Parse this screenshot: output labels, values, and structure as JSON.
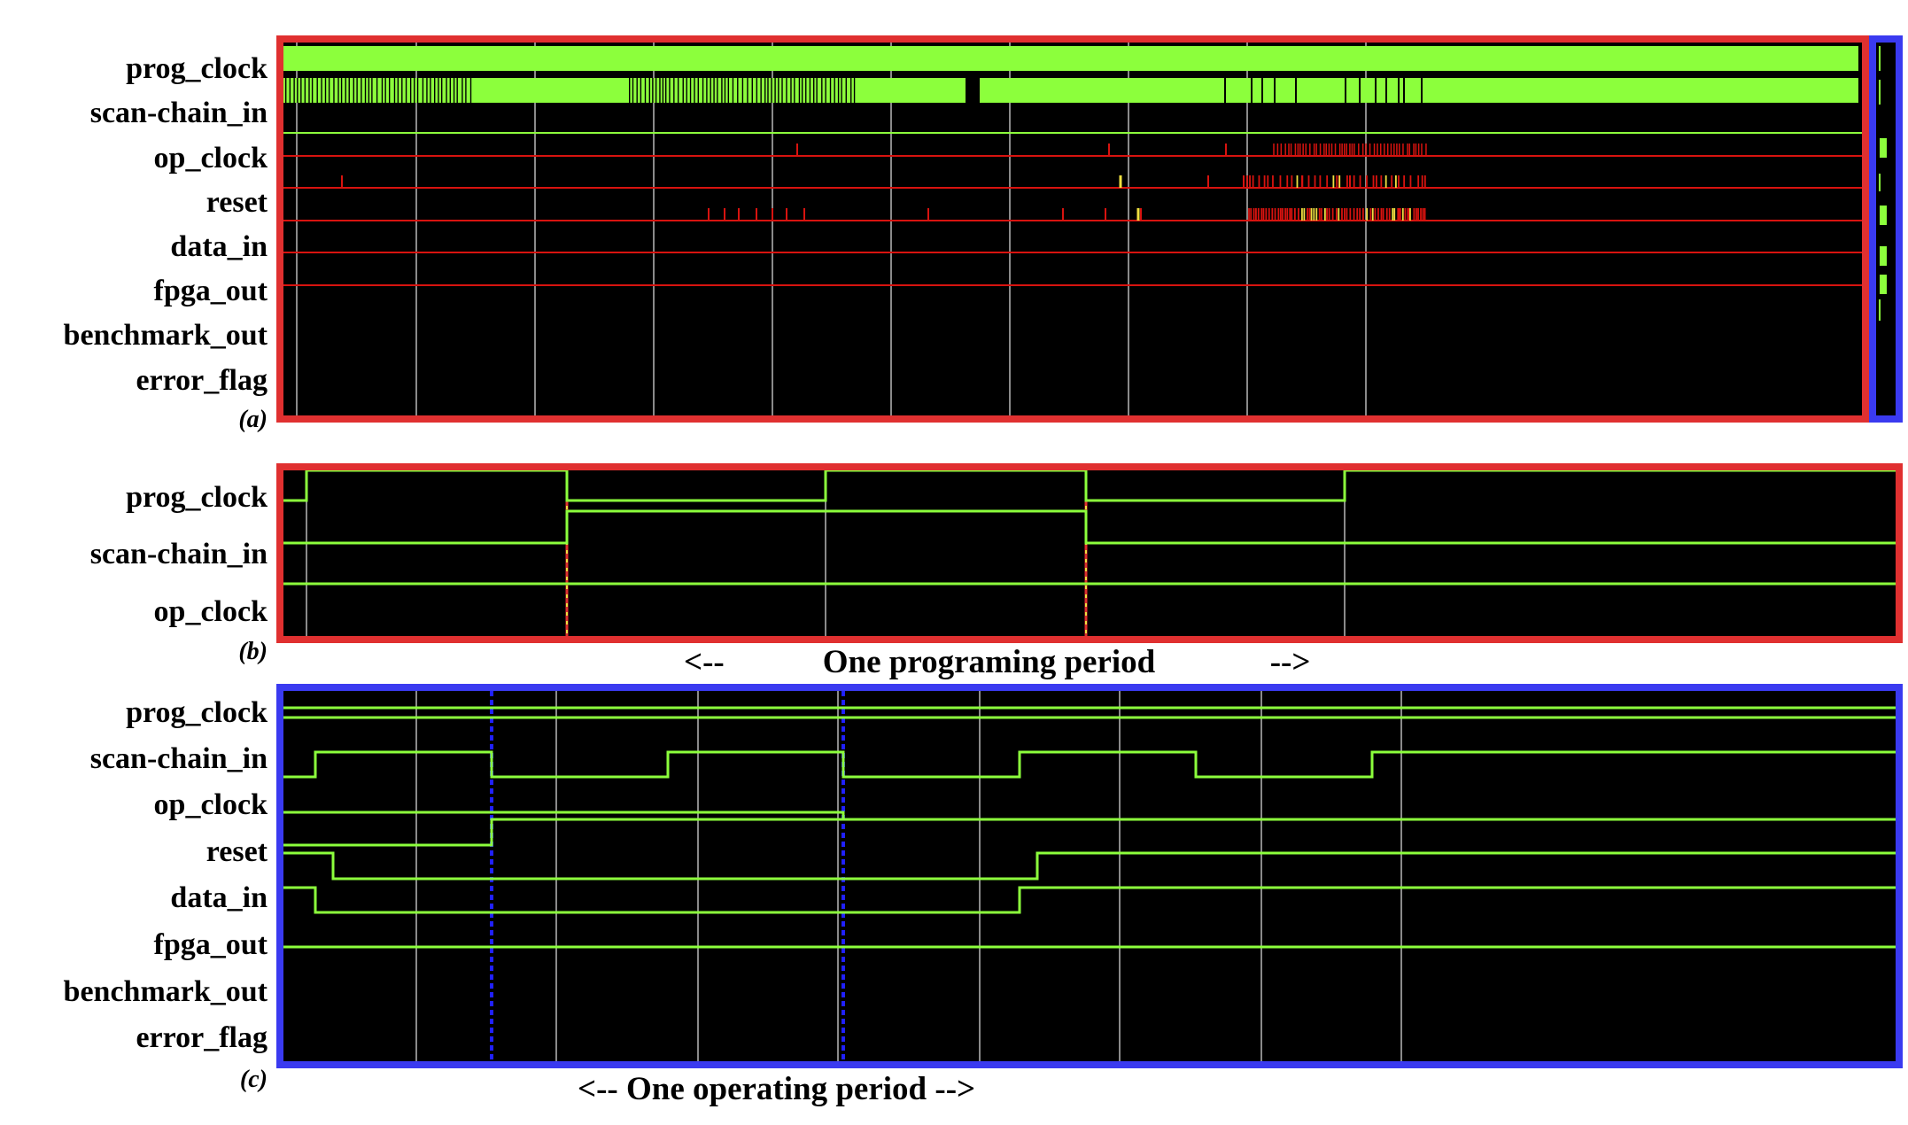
{
  "colors": {
    "trace": "#8cff3c",
    "red_trace": "#d8130f",
    "yellow_trace": "#f0e040",
    "red_frame": "#e03030",
    "blue_frame": "#3a3af0",
    "grid": "#8a8a8a",
    "background": "#000000"
  },
  "panel_a": {
    "label": "(a)",
    "signals": [
      "prog_clock",
      "scan-chain_in",
      "op_clock",
      "reset",
      "data_in",
      "fpga_out",
      "benchmark_out",
      "error_flag"
    ]
  },
  "panel_b": {
    "label": "(b)",
    "signals": [
      "prog_clock",
      "scan-chain_in",
      "op_clock"
    ],
    "caption": "<--            One programing period              -->"
  },
  "panel_c": {
    "label": "(c)",
    "signals": [
      "prog_clock",
      "scan-chain_in",
      "op_clock",
      "reset",
      "data_in",
      "fpga_out",
      "benchmark_out",
      "error_flag"
    ],
    "caption": "<-- One operating period -->"
  }
}
